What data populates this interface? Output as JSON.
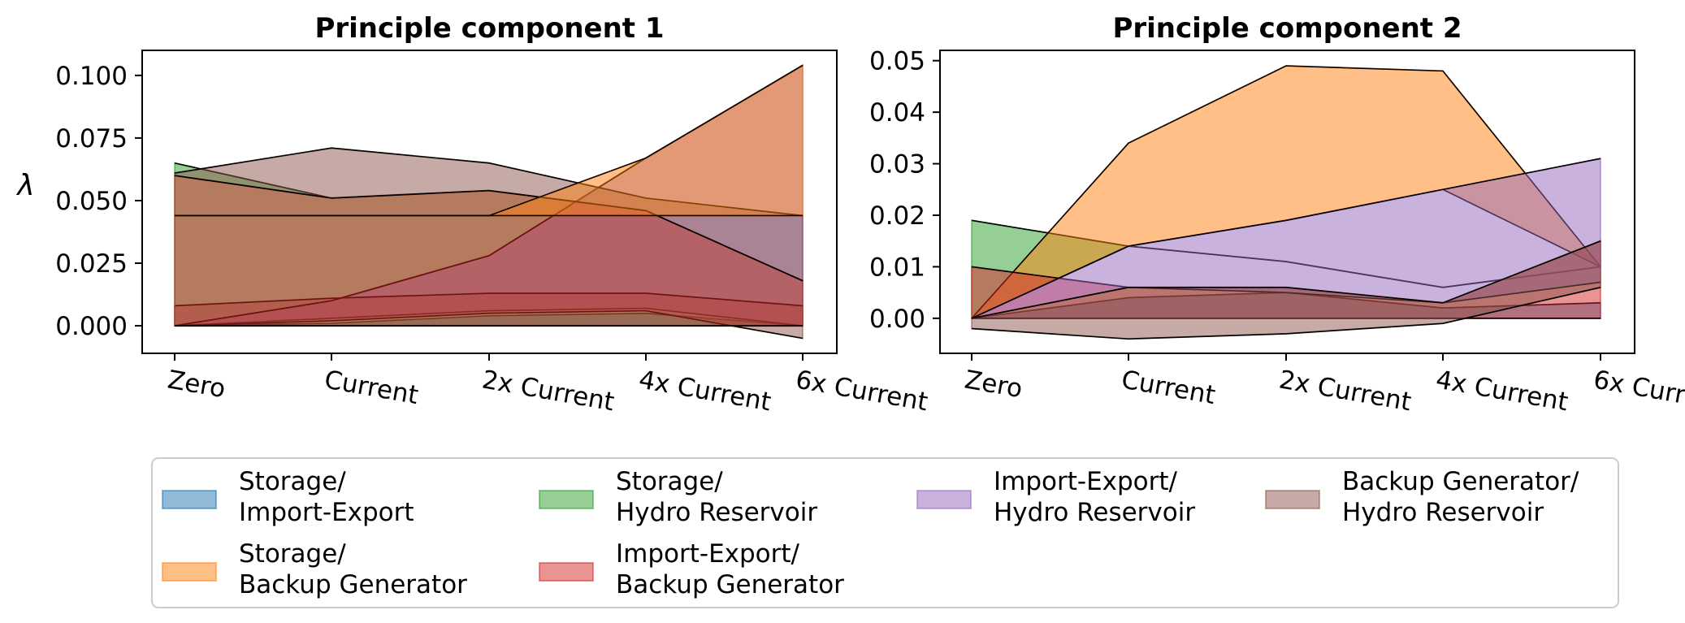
{
  "legend": [
    {
      "key": "si",
      "line1": "Storage/",
      "line2": "Import-Export",
      "color": "#1f77b4"
    },
    {
      "key": "sh",
      "line1": "Storage/",
      "line2": "Hydro Reservoir",
      "color": "#2ca02c"
    },
    {
      "key": "ih",
      "line1": "Import-Export/",
      "line2": "Hydro Reservoir",
      "color": "#9467bd"
    },
    {
      "key": "bh",
      "line1": "Backup Generator/",
      "line2": "Hydro Reservoir",
      "color": "#8c564b"
    },
    {
      "key": "sb",
      "line1": "Storage/",
      "line2": "Backup Generator",
      "color": "#ff7f0e"
    },
    {
      "key": "ib",
      "line1": "Import-Export/",
      "line2": "Backup Generator",
      "color": "#d62728"
    }
  ],
  "chart_data": [
    {
      "type": "area",
      "title": "Principle component 1",
      "ylabel": "λ",
      "categories": [
        "Zero",
        "Current",
        "2x Current",
        "4x Current",
        "6x Current"
      ],
      "ylim": [
        -0.011,
        0.11
      ],
      "yticks": [
        0.0,
        0.025,
        0.05,
        0.075,
        0.1
      ],
      "ytick_labels": [
        "0.000",
        "0.025",
        "0.050",
        "0.075",
        "0.100"
      ],
      "series": [
        {
          "key": "si",
          "lower": [
            0,
            0,
            0,
            0,
            0
          ],
          "upper": [
            0,
            0.001,
            0.004,
            0.005,
            0
          ]
        },
        {
          "key": "sh",
          "lower": [
            0,
            0,
            0,
            0,
            0
          ],
          "upper": [
            0.065,
            0.051,
            0.054,
            0.046,
            0.018
          ]
        },
        {
          "key": "ih",
          "lower": [
            0,
            0.003,
            0.006,
            0.007,
            0
          ],
          "upper": [
            0,
            0.01,
            0.028,
            0.067,
            0.104
          ]
        },
        {
          "key": "bh",
          "lower": [
            0,
            0.002,
            0.005,
            0.006,
            -0.005
          ],
          "upper": [
            0.008,
            0.011,
            0.013,
            0.013,
            0.008
          ]
        },
        {
          "key": "sb",
          "lower": [
            0,
            0.01,
            0.028,
            0.067,
            0.104
          ],
          "upper": [
            0,
            0.01,
            0.028,
            0.067,
            0.104
          ]
        },
        {
          "key": "ib",
          "lower": [
            0,
            0,
            0,
            0,
            0
          ],
          "upper": [
            0.06,
            0.051,
            0.054,
            0.046,
            0.018
          ]
        },
        {
          "key": "bh",
          "lower": [
            0.06,
            0.051,
            0.054,
            0.046,
            0.018
          ],
          "upper": [
            0.061,
            0.071,
            0.065,
            0.051,
            0.044
          ]
        },
        {
          "key": "sb",
          "lower": [
            0.044,
            0.044,
            0.044,
            0.044,
            0.044
          ],
          "upper": [
            0.044,
            0.044,
            0.044,
            0.067,
            0.104
          ]
        }
      ]
    },
    {
      "type": "area",
      "title": "Principle component 2",
      "ylabel": "",
      "categories": [
        "Zero",
        "Current",
        "2x Current",
        "4x Current",
        "6x Current"
      ],
      "ylim": [
        -0.0068,
        0.052
      ],
      "yticks": [
        0.0,
        0.01,
        0.02,
        0.03,
        0.04,
        0.05
      ],
      "ytick_labels": [
        "0.00",
        "0.01",
        "0.02",
        "0.03",
        "0.04",
        "0.05"
      ],
      "series": [
        {
          "key": "si",
          "lower": [
            0,
            0,
            0,
            0,
            0
          ],
          "upper": [
            0,
            0.004,
            0.005,
            0.002,
            0.003
          ]
        },
        {
          "key": "sh",
          "lower": [
            0,
            0.014,
            0.011,
            0.006,
            0.01
          ],
          "upper": [
            0.019,
            0.014,
            0.011,
            0.006,
            0.01
          ]
        },
        {
          "key": "sb",
          "lower": [
            0,
            0.014,
            0.019,
            0.025,
            0.01
          ],
          "upper": [
            0,
            0.034,
            0.049,
            0.048,
            0.01
          ]
        },
        {
          "key": "ib",
          "lower": [
            0,
            0,
            0,
            0,
            0
          ],
          "upper": [
            0.01,
            0.006,
            0.006,
            0.003,
            0.015
          ]
        },
        {
          "key": "ih",
          "lower": [
            0,
            0.006,
            0.005,
            0.003,
            0.007
          ],
          "upper": [
            0,
            0.014,
            0.019,
            0.025,
            0.031
          ]
        },
        {
          "key": "bh",
          "lower": [
            -0.002,
            -0.004,
            -0.003,
            -0.001,
            0.006
          ],
          "upper": [
            0,
            0.006,
            0.006,
            0.003,
            0.015
          ]
        }
      ]
    }
  ]
}
